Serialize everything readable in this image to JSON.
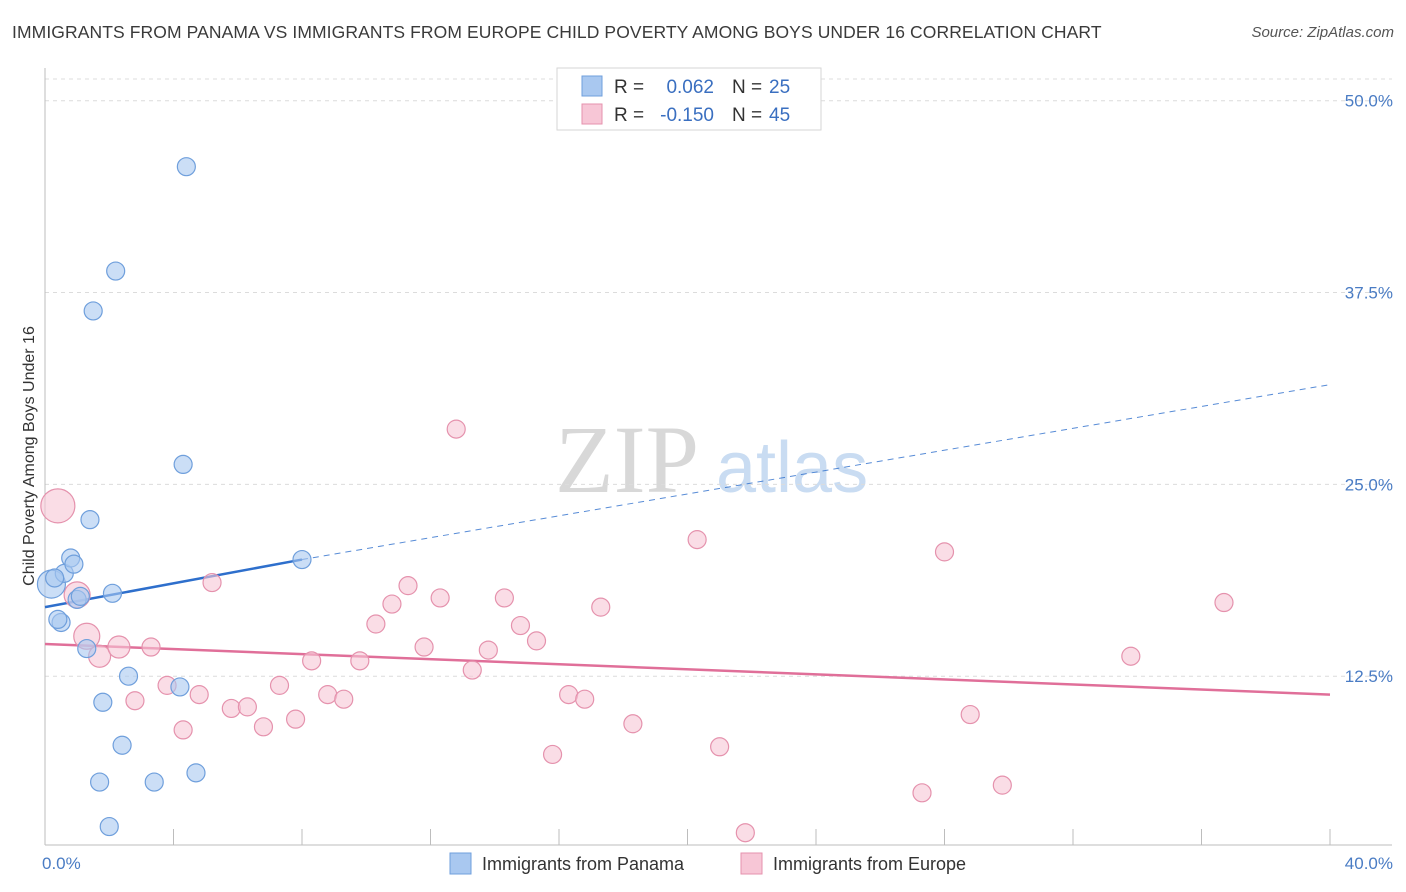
{
  "title": "IMMIGRANTS FROM PANAMA VS IMMIGRANTS FROM EUROPE CHILD POVERTY AMONG BOYS UNDER 16 CORRELATION CHART",
  "source": "Source: ZipAtlas.com",
  "watermark": {
    "zip": "ZIP",
    "atlas": "atlas"
  },
  "chart_data": {
    "type": "scatter",
    "ylabel": "Child Poverty Among Boys Under 16",
    "xlim": [
      0,
      40
    ],
    "ylim": [
      1.5,
      52
    ],
    "x_tick_labels": [
      "0.0%",
      "40.0%"
    ],
    "y_ticks": [
      12.5,
      25.0,
      37.5,
      50.0
    ],
    "y_tick_labels": [
      "12.5%",
      "25.0%",
      "37.5%",
      "50.0%"
    ],
    "grid": true,
    "legend_placement": "top-center",
    "series": [
      {
        "name": "Immigrants from Panama",
        "color": "#a9c8f0",
        "stroke": "#6f9fdc",
        "line_color": "#2e6fcc",
        "stats": {
          "r_label": "R =",
          "r_value": "0.062",
          "n_label": "N =",
          "n_value": "25"
        },
        "trend": {
          "x0": 0,
          "y0": 17.0,
          "x1": 8,
          "y1": 20.1,
          "dashed_to_x": 40,
          "dashed_to_y": 31.5
        },
        "points": [
          [
            0.2,
            18.5,
            14
          ],
          [
            0.5,
            16.0,
            9
          ],
          [
            0.6,
            19.2,
            9
          ],
          [
            0.8,
            20.2,
            9
          ],
          [
            0.9,
            19.8,
            9
          ],
          [
            1.0,
            17.5,
            9
          ],
          [
            1.1,
            17.7,
            9
          ],
          [
            1.3,
            14.3,
            9
          ],
          [
            1.5,
            36.3,
            9
          ],
          [
            1.8,
            10.8,
            9
          ],
          [
            1.7,
            5.6,
            9
          ],
          [
            2.0,
            2.7,
            9
          ],
          [
            2.1,
            17.9,
            9
          ],
          [
            2.2,
            38.9,
            9
          ],
          [
            2.4,
            8.0,
            9
          ],
          [
            2.6,
            12.5,
            9
          ],
          [
            3.4,
            5.6,
            9
          ],
          [
            4.2,
            11.8,
            9
          ],
          [
            4.3,
            26.3,
            9
          ],
          [
            4.4,
            45.7,
            9
          ],
          [
            4.7,
            6.2,
            9
          ],
          [
            8.0,
            20.1,
            9
          ],
          [
            1.4,
            22.7,
            9
          ],
          [
            0.4,
            16.2,
            9
          ],
          [
            0.3,
            18.9,
            9
          ]
        ]
      },
      {
        "name": "Immigrants from Europe",
        "color": "#f7c6d6",
        "stroke": "#e592ad",
        "line_color": "#e06f99",
        "stats": {
          "r_label": "R =",
          "r_value": "-0.150",
          "n_label": "N =",
          "n_value": "45"
        },
        "trend": {
          "x0": 0,
          "y0": 14.6,
          "x1": 40,
          "y1": 11.3
        },
        "points": [
          [
            0.4,
            23.6,
            17
          ],
          [
            1.0,
            17.8,
            13
          ],
          [
            1.3,
            15.1,
            13
          ],
          [
            1.7,
            13.8,
            11
          ],
          [
            2.3,
            14.4,
            11
          ],
          [
            2.8,
            10.9,
            9
          ],
          [
            3.3,
            14.4,
            9
          ],
          [
            3.8,
            11.9,
            9
          ],
          [
            4.3,
            9.0,
            9
          ],
          [
            4.8,
            11.3,
            9
          ],
          [
            5.2,
            18.6,
            9
          ],
          [
            5.8,
            10.4,
            9
          ],
          [
            6.3,
            10.5,
            9
          ],
          [
            6.8,
            9.2,
            9
          ],
          [
            7.3,
            11.9,
            9
          ],
          [
            7.8,
            9.7,
            9
          ],
          [
            8.3,
            13.5,
            9
          ],
          [
            8.8,
            11.3,
            9
          ],
          [
            9.3,
            11.0,
            9
          ],
          [
            9.8,
            13.5,
            9
          ],
          [
            10.3,
            15.9,
            9
          ],
          [
            10.8,
            17.2,
            9
          ],
          [
            11.3,
            18.4,
            9
          ],
          [
            11.8,
            14.4,
            9
          ],
          [
            12.3,
            17.6,
            9
          ],
          [
            12.8,
            28.6,
            9
          ],
          [
            13.3,
            12.9,
            9
          ],
          [
            13.8,
            14.2,
            9
          ],
          [
            14.3,
            17.6,
            9
          ],
          [
            14.8,
            15.8,
            9
          ],
          [
            15.3,
            14.8,
            9
          ],
          [
            15.8,
            7.4,
            9
          ],
          [
            16.3,
            11.3,
            9
          ],
          [
            16.8,
            11.0,
            9
          ],
          [
            17.3,
            17.0,
            9
          ],
          [
            18.3,
            9.4,
            9
          ],
          [
            20.3,
            21.4,
            9
          ],
          [
            21.0,
            7.9,
            9
          ],
          [
            21.8,
            2.3,
            9
          ],
          [
            27.3,
            4.9,
            9
          ],
          [
            28.0,
            20.6,
            9
          ],
          [
            28.8,
            10.0,
            9
          ],
          [
            29.8,
            5.4,
            9
          ],
          [
            33.8,
            13.8,
            9
          ],
          [
            36.7,
            17.3,
            9
          ]
        ]
      }
    ]
  }
}
